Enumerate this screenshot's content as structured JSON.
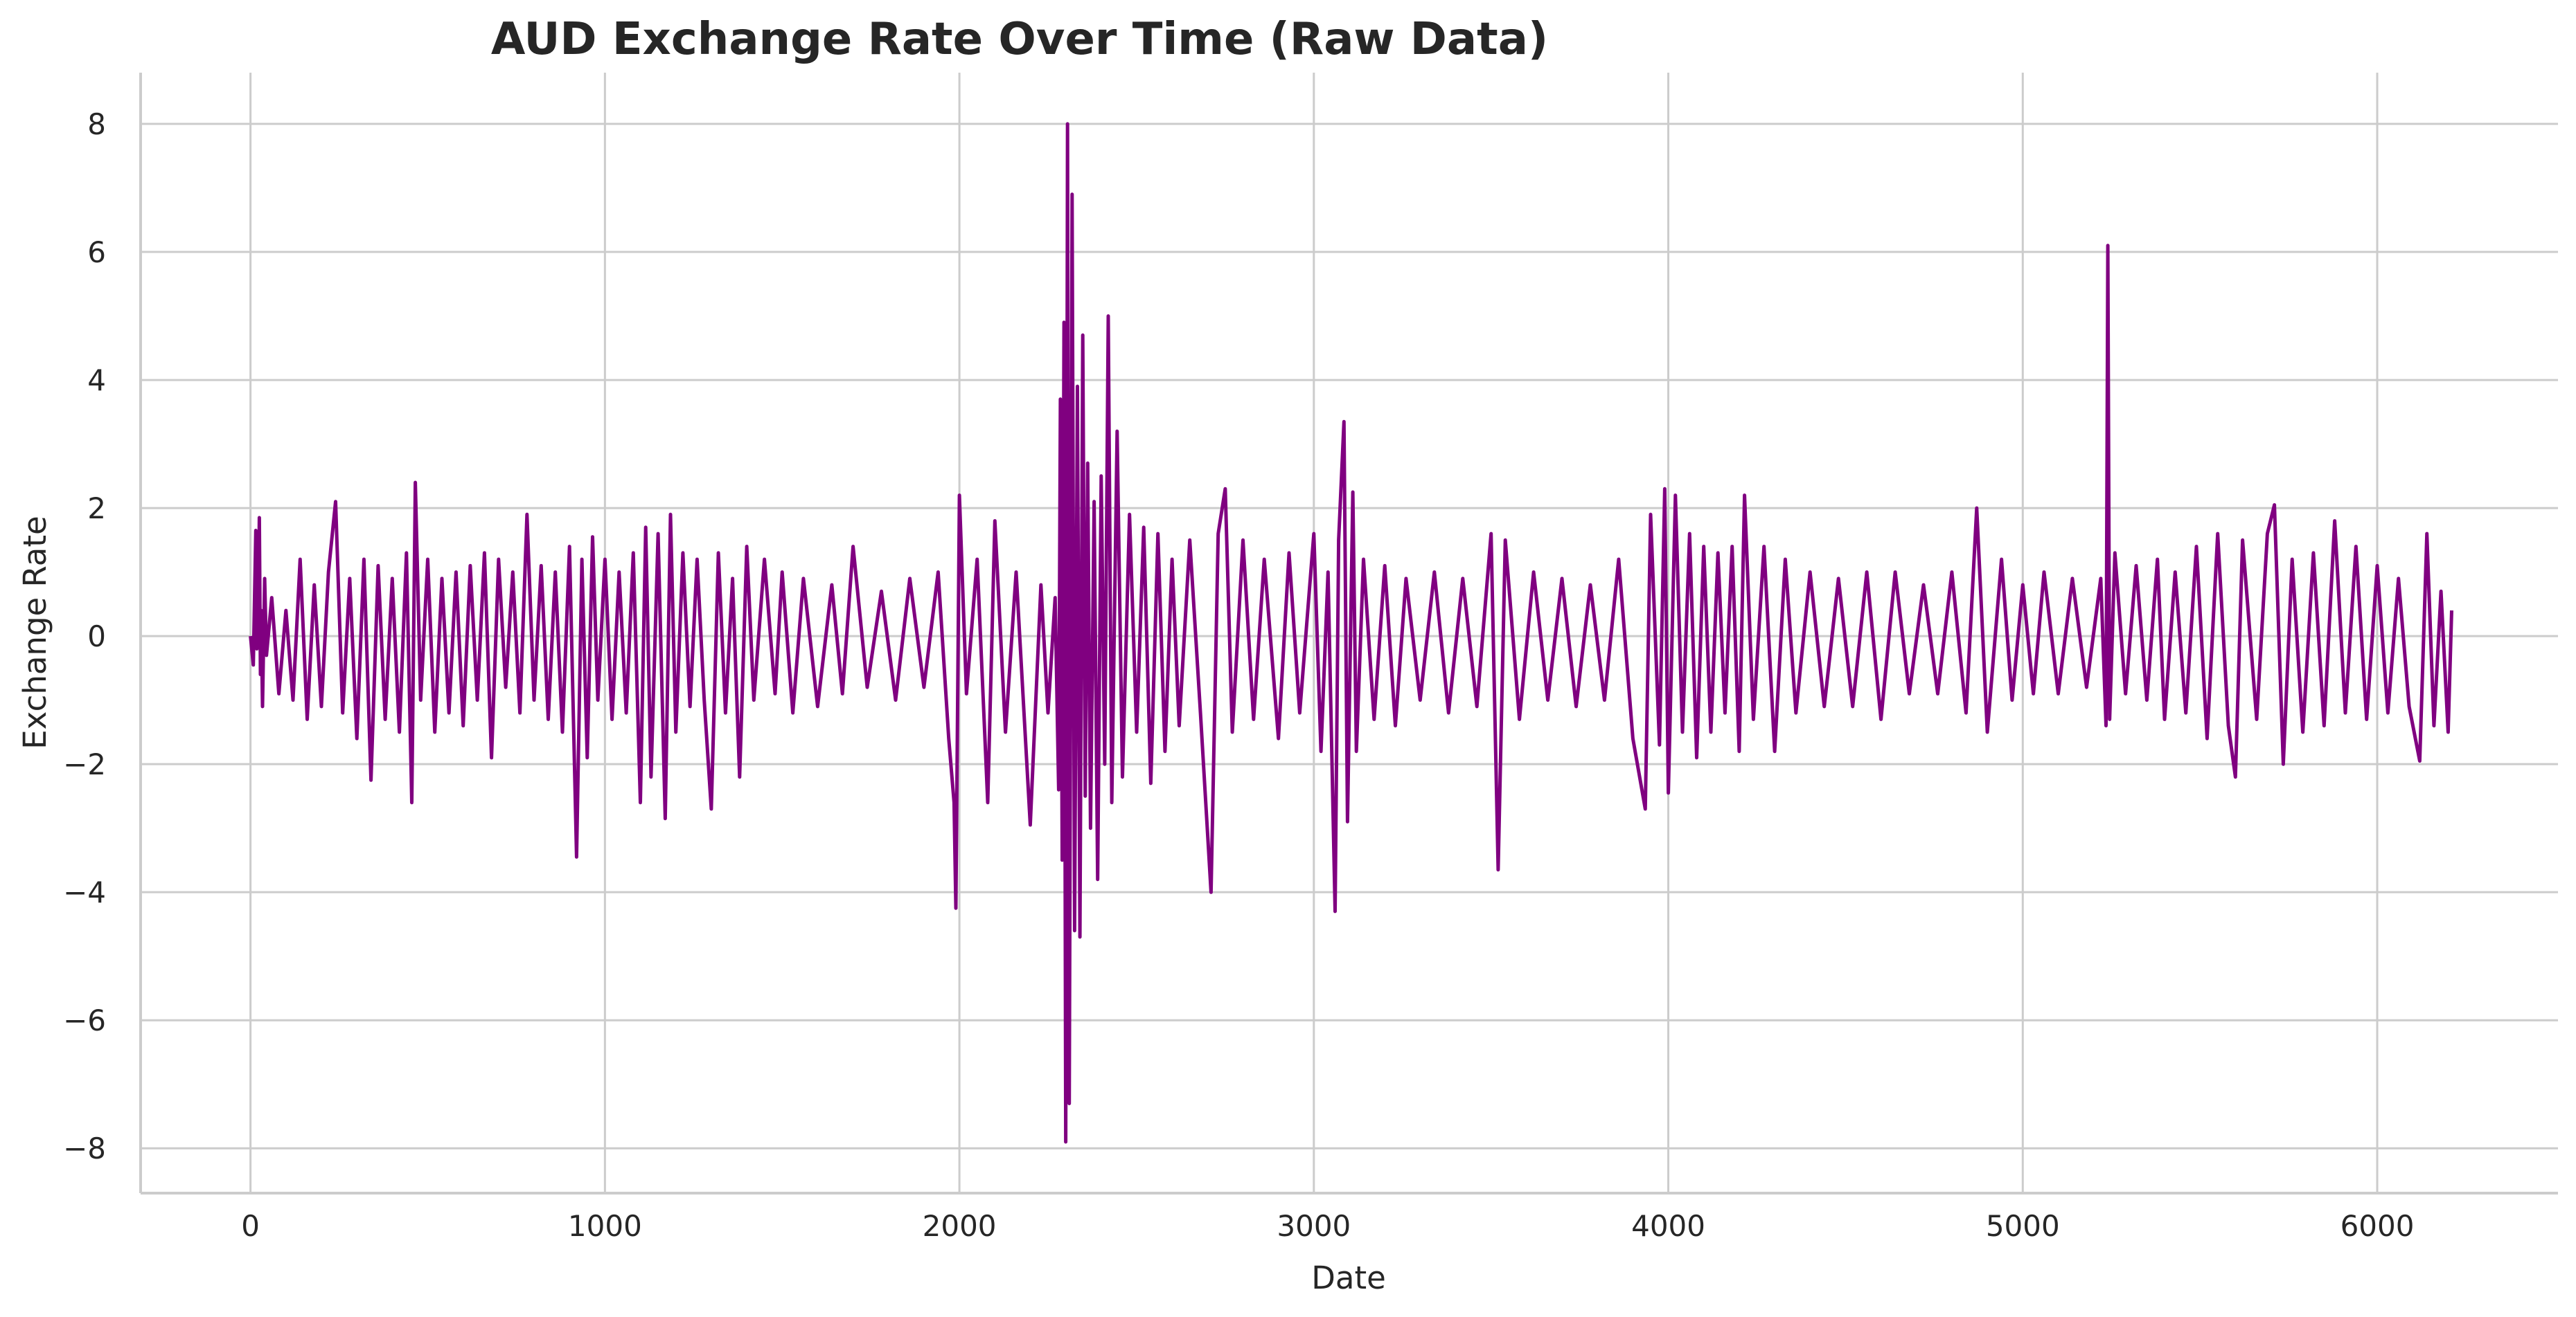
{
  "chart_data": {
    "type": "line",
    "title": "AUD Exchange Rate Over Time (Raw Data)",
    "xlabel": "Date",
    "ylabel": "Exchange Rate",
    "xlim": [
      -310,
      6510
    ],
    "ylim": [
      -8.7,
      8.8
    ],
    "grid": true,
    "legend": "none",
    "x_ticks": [
      0,
      1000,
      2000,
      3000,
      4000,
      5000,
      6000
    ],
    "y_ticks": [
      -8,
      -6,
      -4,
      -2,
      0,
      2,
      4,
      6,
      8
    ],
    "x_tick_labels": [
      "0",
      "1000",
      "2000",
      "3000",
      "4000",
      "5000",
      "6000"
    ],
    "y_tick_labels": [
      "−8",
      "−6",
      "−4",
      "−2",
      "0",
      "2",
      "4",
      "6",
      "8"
    ],
    "colors": {
      "line": "#800080",
      "grid": "#cccccc",
      "text": "#262626"
    },
    "series": [
      {
        "points": [
          [
            0,
            0.0
          ],
          [
            8,
            -0.45
          ],
          [
            15,
            1.65
          ],
          [
            18,
            -0.2
          ],
          [
            22,
            0.3
          ],
          [
            25,
            1.85
          ],
          [
            28,
            -0.6
          ],
          [
            30,
            0.4
          ],
          [
            34,
            -1.1
          ],
          [
            40,
            0.9
          ],
          [
            45,
            -0.3
          ],
          [
            60,
            0.6
          ],
          [
            80,
            -0.9
          ],
          [
            100,
            0.4
          ],
          [
            120,
            -1.0
          ],
          [
            140,
            1.2
          ],
          [
            160,
            -1.3
          ],
          [
            180,
            0.8
          ],
          [
            200,
            -1.1
          ],
          [
            220,
            1.0
          ],
          [
            240,
            2.1
          ],
          [
            260,
            -1.2
          ],
          [
            280,
            0.9
          ],
          [
            300,
            -1.6
          ],
          [
            320,
            1.2
          ],
          [
            340,
            -2.25
          ],
          [
            360,
            1.1
          ],
          [
            380,
            -1.3
          ],
          [
            400,
            0.9
          ],
          [
            420,
            -1.5
          ],
          [
            440,
            1.3
          ],
          [
            455,
            -2.6
          ],
          [
            465,
            2.4
          ],
          [
            480,
            -1.0
          ],
          [
            500,
            1.2
          ],
          [
            520,
            -1.5
          ],
          [
            540,
            0.9
          ],
          [
            560,
            -1.2
          ],
          [
            580,
            1.0
          ],
          [
            600,
            -1.4
          ],
          [
            620,
            1.1
          ],
          [
            640,
            -1.0
          ],
          [
            660,
            1.3
          ],
          [
            680,
            -1.9
          ],
          [
            700,
            1.2
          ],
          [
            720,
            -0.8
          ],
          [
            740,
            1.0
          ],
          [
            760,
            -1.2
          ],
          [
            780,
            1.9
          ],
          [
            800,
            -1.0
          ],
          [
            820,
            1.1
          ],
          [
            840,
            -1.3
          ],
          [
            860,
            1.0
          ],
          [
            880,
            -1.5
          ],
          [
            900,
            1.4
          ],
          [
            920,
            -3.45
          ],
          [
            935,
            1.2
          ],
          [
            950,
            -1.9
          ],
          [
            965,
            1.55
          ],
          [
            980,
            -1.0
          ],
          [
            1000,
            1.2
          ],
          [
            1020,
            -1.3
          ],
          [
            1040,
            1.0
          ],
          [
            1060,
            -1.2
          ],
          [
            1080,
            1.3
          ],
          [
            1100,
            -2.6
          ],
          [
            1115,
            1.7
          ],
          [
            1130,
            -2.2
          ],
          [
            1150,
            1.6
          ],
          [
            1170,
            -2.85
          ],
          [
            1185,
            1.9
          ],
          [
            1200,
            -1.5
          ],
          [
            1220,
            1.3
          ],
          [
            1240,
            -1.1
          ],
          [
            1260,
            1.2
          ],
          [
            1280,
            -1.0
          ],
          [
            1300,
            -2.7
          ],
          [
            1320,
            1.3
          ],
          [
            1340,
            -1.2
          ],
          [
            1360,
            0.9
          ],
          [
            1380,
            -2.2
          ],
          [
            1400,
            1.4
          ],
          [
            1420,
            -1.0
          ],
          [
            1450,
            1.2
          ],
          [
            1480,
            -0.9
          ],
          [
            1500,
            1.0
          ],
          [
            1530,
            -1.2
          ],
          [
            1560,
            0.9
          ],
          [
            1600,
            -1.1
          ],
          [
            1640,
            0.8
          ],
          [
            1670,
            -0.9
          ],
          [
            1700,
            1.4
          ],
          [
            1740,
            -0.8
          ],
          [
            1780,
            0.7
          ],
          [
            1820,
            -1.0
          ],
          [
            1860,
            0.9
          ],
          [
            1900,
            -0.8
          ],
          [
            1940,
            1.0
          ],
          [
            1970,
            -1.6
          ],
          [
            1985,
            -2.6
          ],
          [
            1990,
            -4.25
          ],
          [
            2000,
            2.2
          ],
          [
            2020,
            -0.9
          ],
          [
            2050,
            1.2
          ],
          [
            2080,
            -2.6
          ],
          [
            2100,
            1.8
          ],
          [
            2130,
            -1.5
          ],
          [
            2160,
            1.0
          ],
          [
            2200,
            -2.95
          ],
          [
            2230,
            0.8
          ],
          [
            2250,
            -1.2
          ],
          [
            2270,
            0.6
          ],
          [
            2280,
            -2.4
          ],
          [
            2285,
            3.7
          ],
          [
            2290,
            -3.5
          ],
          [
            2295,
            4.9
          ],
          [
            2300,
            -7.9
          ],
          [
            2305,
            8.0
          ],
          [
            2310,
            -7.3
          ],
          [
            2318,
            6.9
          ],
          [
            2325,
            -4.6
          ],
          [
            2333,
            3.9
          ],
          [
            2340,
            -4.7
          ],
          [
            2348,
            4.7
          ],
          [
            2355,
            -2.5
          ],
          [
            2362,
            2.7
          ],
          [
            2370,
            -3.0
          ],
          [
            2380,
            2.1
          ],
          [
            2390,
            -3.8
          ],
          [
            2400,
            2.5
          ],
          [
            2410,
            -2.0
          ],
          [
            2420,
            5.0
          ],
          [
            2430,
            -2.6
          ],
          [
            2445,
            3.2
          ],
          [
            2460,
            -2.2
          ],
          [
            2480,
            1.9
          ],
          [
            2500,
            -1.5
          ],
          [
            2520,
            1.7
          ],
          [
            2540,
            -2.3
          ],
          [
            2560,
            1.6
          ],
          [
            2580,
            -1.8
          ],
          [
            2600,
            1.2
          ],
          [
            2620,
            -1.4
          ],
          [
            2650,
            1.5
          ],
          [
            2680,
            -1.2
          ],
          [
            2710,
            -4.0
          ],
          [
            2730,
            1.6
          ],
          [
            2750,
            2.3
          ],
          [
            2770,
            -1.5
          ],
          [
            2800,
            1.5
          ],
          [
            2830,
            -1.3
          ],
          [
            2860,
            1.2
          ],
          [
            2900,
            -1.6
          ],
          [
            2930,
            1.3
          ],
          [
            2960,
            -1.2
          ],
          [
            3000,
            1.6
          ],
          [
            3020,
            -1.8
          ],
          [
            3040,
            1.0
          ],
          [
            3060,
            -4.3
          ],
          [
            3070,
            1.5
          ],
          [
            3085,
            3.35
          ],
          [
            3095,
            -2.9
          ],
          [
            3110,
            2.25
          ],
          [
            3120,
            -1.8
          ],
          [
            3140,
            1.2
          ],
          [
            3170,
            -1.3
          ],
          [
            3200,
            1.1
          ],
          [
            3230,
            -1.4
          ],
          [
            3260,
            0.9
          ],
          [
            3300,
            -1.0
          ],
          [
            3340,
            1.0
          ],
          [
            3380,
            -1.2
          ],
          [
            3420,
            0.9
          ],
          [
            3460,
            -1.1
          ],
          [
            3500,
            1.6
          ],
          [
            3520,
            -3.65
          ],
          [
            3540,
            1.5
          ],
          [
            3580,
            -1.3
          ],
          [
            3620,
            1.0
          ],
          [
            3660,
            -1.0
          ],
          [
            3700,
            0.9
          ],
          [
            3740,
            -1.1
          ],
          [
            3780,
            0.8
          ],
          [
            3820,
            -1.0
          ],
          [
            3860,
            1.2
          ],
          [
            3900,
            -1.6
          ],
          [
            3935,
            -2.7
          ],
          [
            3950,
            1.9
          ],
          [
            3975,
            -1.7
          ],
          [
            3990,
            2.3
          ],
          [
            4000,
            -2.45
          ],
          [
            4020,
            2.2
          ],
          [
            4040,
            -1.5
          ],
          [
            4060,
            1.6
          ],
          [
            4080,
            -1.9
          ],
          [
            4100,
            1.4
          ],
          [
            4120,
            -1.5
          ],
          [
            4140,
            1.3
          ],
          [
            4160,
            -1.2
          ],
          [
            4180,
            1.4
          ],
          [
            4200,
            -1.8
          ],
          [
            4215,
            2.2
          ],
          [
            4240,
            -1.3
          ],
          [
            4270,
            1.4
          ],
          [
            4300,
            -1.8
          ],
          [
            4330,
            1.2
          ],
          [
            4360,
            -1.2
          ],
          [
            4400,
            1.0
          ],
          [
            4440,
            -1.1
          ],
          [
            4480,
            0.9
          ],
          [
            4520,
            -1.1
          ],
          [
            4560,
            1.0
          ],
          [
            4600,
            -1.3
          ],
          [
            4640,
            1.0
          ],
          [
            4680,
            -0.9
          ],
          [
            4720,
            0.8
          ],
          [
            4760,
            -0.9
          ],
          [
            4800,
            1.0
          ],
          [
            4840,
            -1.2
          ],
          [
            4870,
            2.0
          ],
          [
            4900,
            -1.5
          ],
          [
            4940,
            1.2
          ],
          [
            4970,
            -1.0
          ],
          [
            5000,
            0.8
          ],
          [
            5030,
            -0.9
          ],
          [
            5060,
            1.0
          ],
          [
            5100,
            -0.9
          ],
          [
            5140,
            0.9
          ],
          [
            5180,
            -0.8
          ],
          [
            5220,
            0.9
          ],
          [
            5235,
            -1.4
          ],
          [
            5240,
            6.1
          ],
          [
            5245,
            -1.3
          ],
          [
            5260,
            1.3
          ],
          [
            5290,
            -0.9
          ],
          [
            5320,
            1.1
          ],
          [
            5350,
            -1.0
          ],
          [
            5380,
            1.2
          ],
          [
            5400,
            -1.3
          ],
          [
            5430,
            1.0
          ],
          [
            5460,
            -1.2
          ],
          [
            5490,
            1.4
          ],
          [
            5520,
            -1.6
          ],
          [
            5550,
            1.6
          ],
          [
            5580,
            -1.4
          ],
          [
            5600,
            -2.2
          ],
          [
            5620,
            1.5
          ],
          [
            5660,
            -1.3
          ],
          [
            5690,
            1.6
          ],
          [
            5710,
            2.05
          ],
          [
            5735,
            -2.0
          ],
          [
            5760,
            1.2
          ],
          [
            5790,
            -1.5
          ],
          [
            5820,
            1.3
          ],
          [
            5850,
            -1.4
          ],
          [
            5880,
            1.8
          ],
          [
            5910,
            -1.2
          ],
          [
            5940,
            1.4
          ],
          [
            5970,
            -1.3
          ],
          [
            6000,
            1.1
          ],
          [
            6030,
            -1.2
          ],
          [
            6060,
            0.9
          ],
          [
            6090,
            -1.1
          ],
          [
            6120,
            -1.95
          ],
          [
            6140,
            1.6
          ],
          [
            6160,
            -1.4
          ],
          [
            6180,
            0.7
          ],
          [
            6200,
            -1.5
          ],
          [
            6210,
            0.4
          ]
        ]
      }
    ]
  }
}
